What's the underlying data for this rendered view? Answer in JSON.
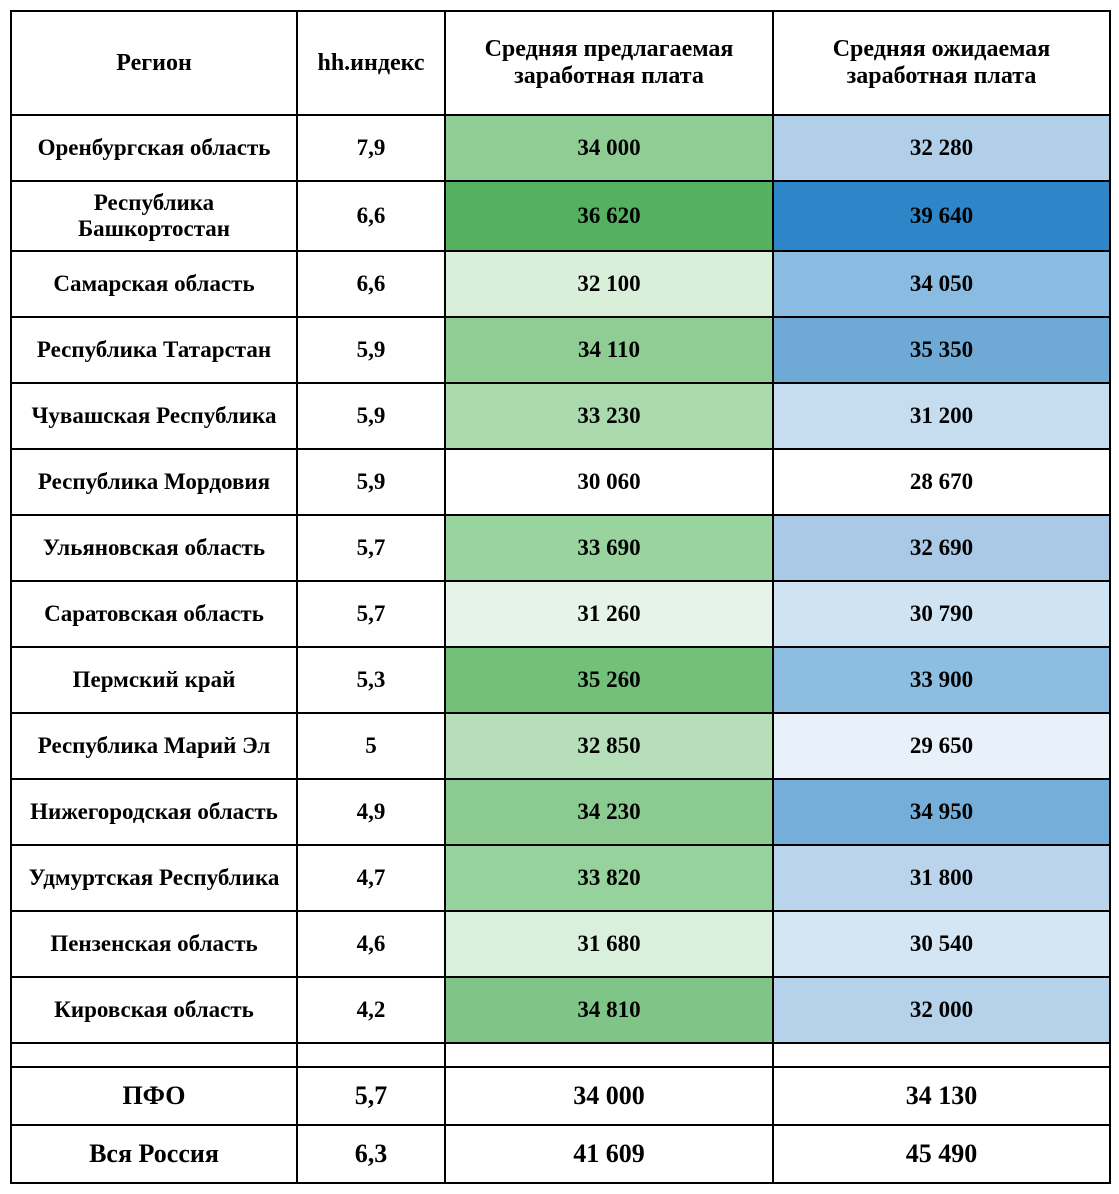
{
  "columns": [
    {
      "key": "region",
      "label": "Регион"
    },
    {
      "key": "index",
      "label": "hh.индекс"
    },
    {
      "key": "offer",
      "label": "Средняя предлагаемая заработная плата"
    },
    {
      "key": "expect",
      "label": "Средняя ожидаемая заработная плата"
    }
  ],
  "rows": [
    {
      "region": "Оренбургская область",
      "index": "7,9",
      "offer": "34 000",
      "offer_bg": "#8fcd95",
      "expect": "32 280",
      "expect_bg": "#b2cfe9"
    },
    {
      "region": "Республика Башкортостан",
      "index": "6,6",
      "offer": "36 620",
      "offer_bg": "#55b060",
      "expect": "39 640",
      "expect_bg": "#2e85c8"
    },
    {
      "region": "Самарская область",
      "index": "6,6",
      "offer": "32 100",
      "offer_bg": "#d9efda",
      "expect": "34 050",
      "expect_bg": "#8abbe1"
    },
    {
      "region": "Республика Татарстан",
      "index": "5,9",
      "offer": "34 110",
      "offer_bg": "#8fcd95",
      "expect": "35 350",
      "expect_bg": "#6fa9d6"
    },
    {
      "region": "Чувашская Республика",
      "index": "5,9",
      "offer": "33 230",
      "offer_bg": "#a9d9ac",
      "expect": "31 200",
      "expect_bg": "#c6ddf0"
    },
    {
      "region": "Республика Мордовия",
      "index": "5,9",
      "offer": "30 060",
      "offer_bg": "#ffffff",
      "expect": "28 670",
      "expect_bg": "#ffffff"
    },
    {
      "region": "Ульяновская область",
      "index": "5,7",
      "offer": "33 690",
      "offer_bg": "#99d39e",
      "expect": "32 690",
      "expect_bg": "#a9c9e6"
    },
    {
      "region": "Саратовская область",
      "index": "5,7",
      "offer": "31 260",
      "offer_bg": "#e5f4e6",
      "expect": "30 790",
      "expect_bg": "#cfe3f2"
    },
    {
      "region": "Пермский край",
      "index": "5,3",
      "offer": "35 260",
      "offer_bg": "#73c07b",
      "expect": "33 900",
      "expect_bg": "#8dbde1"
    },
    {
      "region": "Республика Марий Эл",
      "index": "5",
      "offer": "32 850",
      "offer_bg": "#b6dfb9",
      "expect": "29 650",
      "expect_bg": "#e8f1f9"
    },
    {
      "region": "Нижегородская область",
      "index": "4,9",
      "offer": "34 230",
      "offer_bg": "#8bcb92",
      "expect": "34 950",
      "expect_bg": "#75aed8"
    },
    {
      "region": "Удмуртская Республика",
      "index": "4,7",
      "offer": "33 820",
      "offer_bg": "#96d29c",
      "expect": "31 800",
      "expect_bg": "#bad4eb"
    },
    {
      "region": "Пензенская область",
      "index": "4,6",
      "offer": "31 680",
      "offer_bg": "#dbf0dc",
      "expect": "30 540",
      "expect_bg": "#d4e6f3"
    },
    {
      "region": "Кировская область",
      "index": "4,2",
      "offer": "34 810",
      "offer_bg": "#7fc587",
      "expect": "32 000",
      "expect_bg": "#b6d2ea"
    }
  ],
  "summary": [
    {
      "region": "ПФО",
      "index": "5,7",
      "offer": "34 000",
      "expect": "34 130"
    },
    {
      "region": "Вся Россия",
      "index": "6,3",
      "offer": "41 609",
      "expect": "45 490"
    }
  ],
  "style": {
    "border_color": "#000000",
    "header_bg": "#ffffff",
    "row_region_bg": "#ffffff",
    "row_index_bg": "#ffffff",
    "font_family": "Georgia, 'Times New Roman', serif",
    "header_fontsize": 24,
    "cell_fontsize": 23,
    "summary_fontsize": 26
  }
}
